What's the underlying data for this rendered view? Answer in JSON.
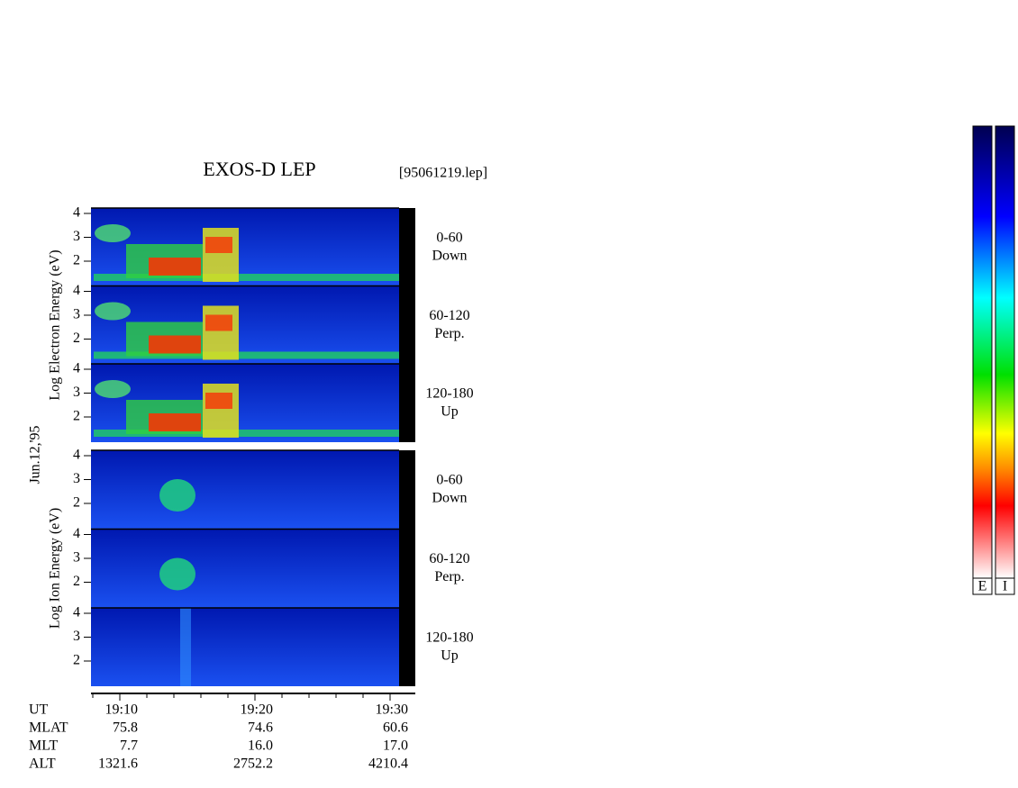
{
  "header": {
    "title": "EXOS-D LEP",
    "file": "[95061219.lep]"
  },
  "date": "Jun.12,'95",
  "groups": [
    {
      "label": "Log Electron Energy (eV)",
      "panels": [
        {
          "range": "0-60",
          "dir": "Down"
        },
        {
          "range": "60-120",
          "dir": "Perp."
        },
        {
          "range": "120-180",
          "dir": "Up"
        }
      ]
    },
    {
      "label": "Log Ion Energy (eV)",
      "panels": [
        {
          "range": "0-60",
          "dir": "Down"
        },
        {
          "range": "60-120",
          "dir": "Perp."
        },
        {
          "range": "120-180",
          "dir": "Up"
        }
      ]
    }
  ],
  "yticks": [
    "4",
    "3",
    "2"
  ],
  "footer": {
    "rows": [
      {
        "name": "UT",
        "values": [
          "19:10",
          "19:20",
          "19:30"
        ]
      },
      {
        "name": "MLAT",
        "values": [
          "75.8",
          "74.6",
          "60.6"
        ]
      },
      {
        "name": "MLT",
        "values": [
          "7.7",
          "16.0",
          "17.0"
        ]
      },
      {
        "name": "ALT",
        "values": [
          "1321.6",
          "2752.2",
          "4210.4"
        ]
      }
    ]
  },
  "colorbars": [
    "E",
    "I"
  ]
}
